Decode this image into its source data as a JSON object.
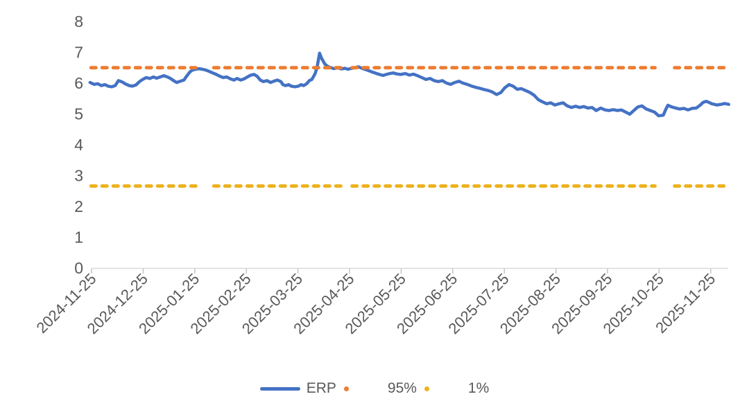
{
  "chart_data": {
    "type": "line",
    "legend": {
      "position": "bottom"
    },
    "axis": {
      "line_color": "#D9D9D9",
      "tick_color": "#BFBFBF",
      "label_color": "#595959"
    },
    "x_axis": {
      "unit": "months since 2024-11-25",
      "label_rotation_deg": -45,
      "range_months": [
        0,
        12.35
      ],
      "tick_labels": [
        "2024-11-25",
        "2024-12-25",
        "2025-01-25",
        "2025-02-25",
        "2025-03-25",
        "2025-04-25",
        "2025-05-25",
        "2025-06-25",
        "2025-07-25",
        "2025-08-25",
        "2025-09-25",
        "2025-10-25",
        "2025-11-25"
      ]
    },
    "y_axis": {
      "min": 0,
      "max": 8,
      "tick_step": 1,
      "tick_labels": [
        "0",
        "1",
        "2",
        "3",
        "4",
        "5",
        "6",
        "7",
        "8"
      ],
      "gridlines": false
    },
    "series": [
      {
        "name": "ERP",
        "color": "#4472C4",
        "style": "solid",
        "points": [
          [
            -0.03,
            6.02
          ],
          [
            0.05,
            5.96
          ],
          [
            0.12,
            5.98
          ],
          [
            0.19,
            5.92
          ],
          [
            0.26,
            5.95
          ],
          [
            0.32,
            5.9
          ],
          [
            0.39,
            5.88
          ],
          [
            0.46,
            5.92
          ],
          [
            0.52,
            6.08
          ],
          [
            0.59,
            6.04
          ],
          [
            0.66,
            5.97
          ],
          [
            0.73,
            5.92
          ],
          [
            0.79,
            5.9
          ],
          [
            0.86,
            5.94
          ],
          [
            0.93,
            6.05
          ],
          [
            0.99,
            6.12
          ],
          [
            1.06,
            6.18
          ],
          [
            1.13,
            6.15
          ],
          [
            1.2,
            6.2
          ],
          [
            1.26,
            6.16
          ],
          [
            1.33,
            6.2
          ],
          [
            1.4,
            6.24
          ],
          [
            1.47,
            6.2
          ],
          [
            1.53,
            6.15
          ],
          [
            1.59,
            6.08
          ],
          [
            1.65,
            6.02
          ],
          [
            1.72,
            6.06
          ],
          [
            1.79,
            6.1
          ],
          [
            1.84,
            6.22
          ],
          [
            1.9,
            6.35
          ],
          [
            1.95,
            6.42
          ],
          [
            2.02,
            6.45
          ],
          [
            2.08,
            6.47
          ],
          [
            2.15,
            6.45
          ],
          [
            2.22,
            6.42
          ],
          [
            2.28,
            6.38
          ],
          [
            2.35,
            6.33
          ],
          [
            2.42,
            6.28
          ],
          [
            2.49,
            6.22
          ],
          [
            2.55,
            6.18
          ],
          [
            2.62,
            6.2
          ],
          [
            2.69,
            6.14
          ],
          [
            2.76,
            6.1
          ],
          [
            2.82,
            6.15
          ],
          [
            2.89,
            6.1
          ],
          [
            2.96,
            6.14
          ],
          [
            3.02,
            6.2
          ],
          [
            3.09,
            6.26
          ],
          [
            3.15,
            6.28
          ],
          [
            3.21,
            6.22
          ],
          [
            3.27,
            6.1
          ],
          [
            3.33,
            6.05
          ],
          [
            3.4,
            6.08
          ],
          [
            3.47,
            6.02
          ],
          [
            3.53,
            6.06
          ],
          [
            3.6,
            6.1
          ],
          [
            3.67,
            6.05
          ],
          [
            3.71,
            5.95
          ],
          [
            3.76,
            5.92
          ],
          [
            3.82,
            5.95
          ],
          [
            3.87,
            5.9
          ],
          [
            3.94,
            5.88
          ],
          [
            4.01,
            5.9
          ],
          [
            4.06,
            5.95
          ],
          [
            4.11,
            5.92
          ],
          [
            4.17,
            5.98
          ],
          [
            4.22,
            6.08
          ],
          [
            4.27,
            6.12
          ],
          [
            4.33,
            6.3
          ],
          [
            4.37,
            6.5
          ],
          [
            4.42,
            6.97
          ],
          [
            4.46,
            6.8
          ],
          [
            4.52,
            6.62
          ],
          [
            4.57,
            6.55
          ],
          [
            4.64,
            6.5
          ],
          [
            4.7,
            6.47
          ],
          [
            4.77,
            6.5
          ],
          [
            4.84,
            6.46
          ],
          [
            4.91,
            6.48
          ],
          [
            4.97,
            6.45
          ],
          [
            5.04,
            6.48
          ],
          [
            5.11,
            6.5
          ],
          [
            5.17,
            6.53
          ],
          [
            5.24,
            6.48
          ],
          [
            5.31,
            6.44
          ],
          [
            5.38,
            6.4
          ],
          [
            5.44,
            6.36
          ],
          [
            5.51,
            6.32
          ],
          [
            5.58,
            6.28
          ],
          [
            5.65,
            6.25
          ],
          [
            5.71,
            6.28
          ],
          [
            5.78,
            6.31
          ],
          [
            5.85,
            6.33
          ],
          [
            5.91,
            6.3
          ],
          [
            5.99,
            6.28
          ],
          [
            6.08,
            6.31
          ],
          [
            6.16,
            6.26
          ],
          [
            6.24,
            6.29
          ],
          [
            6.32,
            6.24
          ],
          [
            6.4,
            6.18
          ],
          [
            6.48,
            6.12
          ],
          [
            6.56,
            6.15
          ],
          [
            6.64,
            6.08
          ],
          [
            6.72,
            6.05
          ],
          [
            6.8,
            6.08
          ],
          [
            6.88,
            6.0
          ],
          [
            6.96,
            5.96
          ],
          [
            7.04,
            6.02
          ],
          [
            7.12,
            6.06
          ],
          [
            7.2,
            6.0
          ],
          [
            7.28,
            5.96
          ],
          [
            7.37,
            5.9
          ],
          [
            7.45,
            5.86
          ],
          [
            7.53,
            5.83
          ],
          [
            7.61,
            5.79
          ],
          [
            7.69,
            5.76
          ],
          [
            7.77,
            5.71
          ],
          [
            7.85,
            5.63
          ],
          [
            7.93,
            5.69
          ],
          [
            8.01,
            5.85
          ],
          [
            8.09,
            5.95
          ],
          [
            8.17,
            5.9
          ],
          [
            8.25,
            5.8
          ],
          [
            8.33,
            5.82
          ],
          [
            8.41,
            5.76
          ],
          [
            8.49,
            5.7
          ],
          [
            8.58,
            5.6
          ],
          [
            8.66,
            5.46
          ],
          [
            8.74,
            5.39
          ],
          [
            8.82,
            5.33
          ],
          [
            8.9,
            5.36
          ],
          [
            8.98,
            5.29
          ],
          [
            9.06,
            5.33
          ],
          [
            9.14,
            5.36
          ],
          [
            9.22,
            5.26
          ],
          [
            9.3,
            5.21
          ],
          [
            9.38,
            5.25
          ],
          [
            9.46,
            5.21
          ],
          [
            9.54,
            5.24
          ],
          [
            9.62,
            5.19
          ],
          [
            9.7,
            5.21
          ],
          [
            9.78,
            5.11
          ],
          [
            9.87,
            5.19
          ],
          [
            9.95,
            5.13
          ],
          [
            10.03,
            5.11
          ],
          [
            10.11,
            5.14
          ],
          [
            10.19,
            5.11
          ],
          [
            10.27,
            5.13
          ],
          [
            10.35,
            5.06
          ],
          [
            10.43,
            4.99
          ],
          [
            10.51,
            5.11
          ],
          [
            10.59,
            5.23
          ],
          [
            10.67,
            5.26
          ],
          [
            10.75,
            5.16
          ],
          [
            10.83,
            5.11
          ],
          [
            10.91,
            5.06
          ],
          [
            10.99,
            4.94
          ],
          [
            11.08,
            4.96
          ],
          [
            11.13,
            5.15
          ],
          [
            11.17,
            5.28
          ],
          [
            11.24,
            5.23
          ],
          [
            11.32,
            5.19
          ],
          [
            11.4,
            5.16
          ],
          [
            11.48,
            5.18
          ],
          [
            11.56,
            5.13
          ],
          [
            11.64,
            5.18
          ],
          [
            11.72,
            5.19
          ],
          [
            11.8,
            5.29
          ],
          [
            11.85,
            5.37
          ],
          [
            11.91,
            5.41
          ],
          [
            11.96,
            5.38
          ],
          [
            12.02,
            5.33
          ],
          [
            12.07,
            5.31
          ],
          [
            12.12,
            5.29
          ],
          [
            12.2,
            5.31
          ],
          [
            12.27,
            5.34
          ],
          [
            12.35,
            5.31
          ]
        ]
      },
      {
        "name": "95%",
        "color": "#ED7D31",
        "style": "dashed",
        "value": 6.5,
        "segments": [
          [
            -0.01,
            2.1
          ],
          [
            2.37,
            4.88
          ],
          [
            5.05,
            10.92
          ],
          [
            11.3,
            12.34
          ]
        ]
      },
      {
        "name": "1%",
        "color": "#EDB11C",
        "style": "dashed",
        "value": 2.66,
        "segments": [
          [
            -0.01,
            2.1
          ],
          [
            2.37,
            4.88
          ],
          [
            5.05,
            10.92
          ],
          [
            11.3,
            12.34
          ]
        ]
      }
    ]
  }
}
